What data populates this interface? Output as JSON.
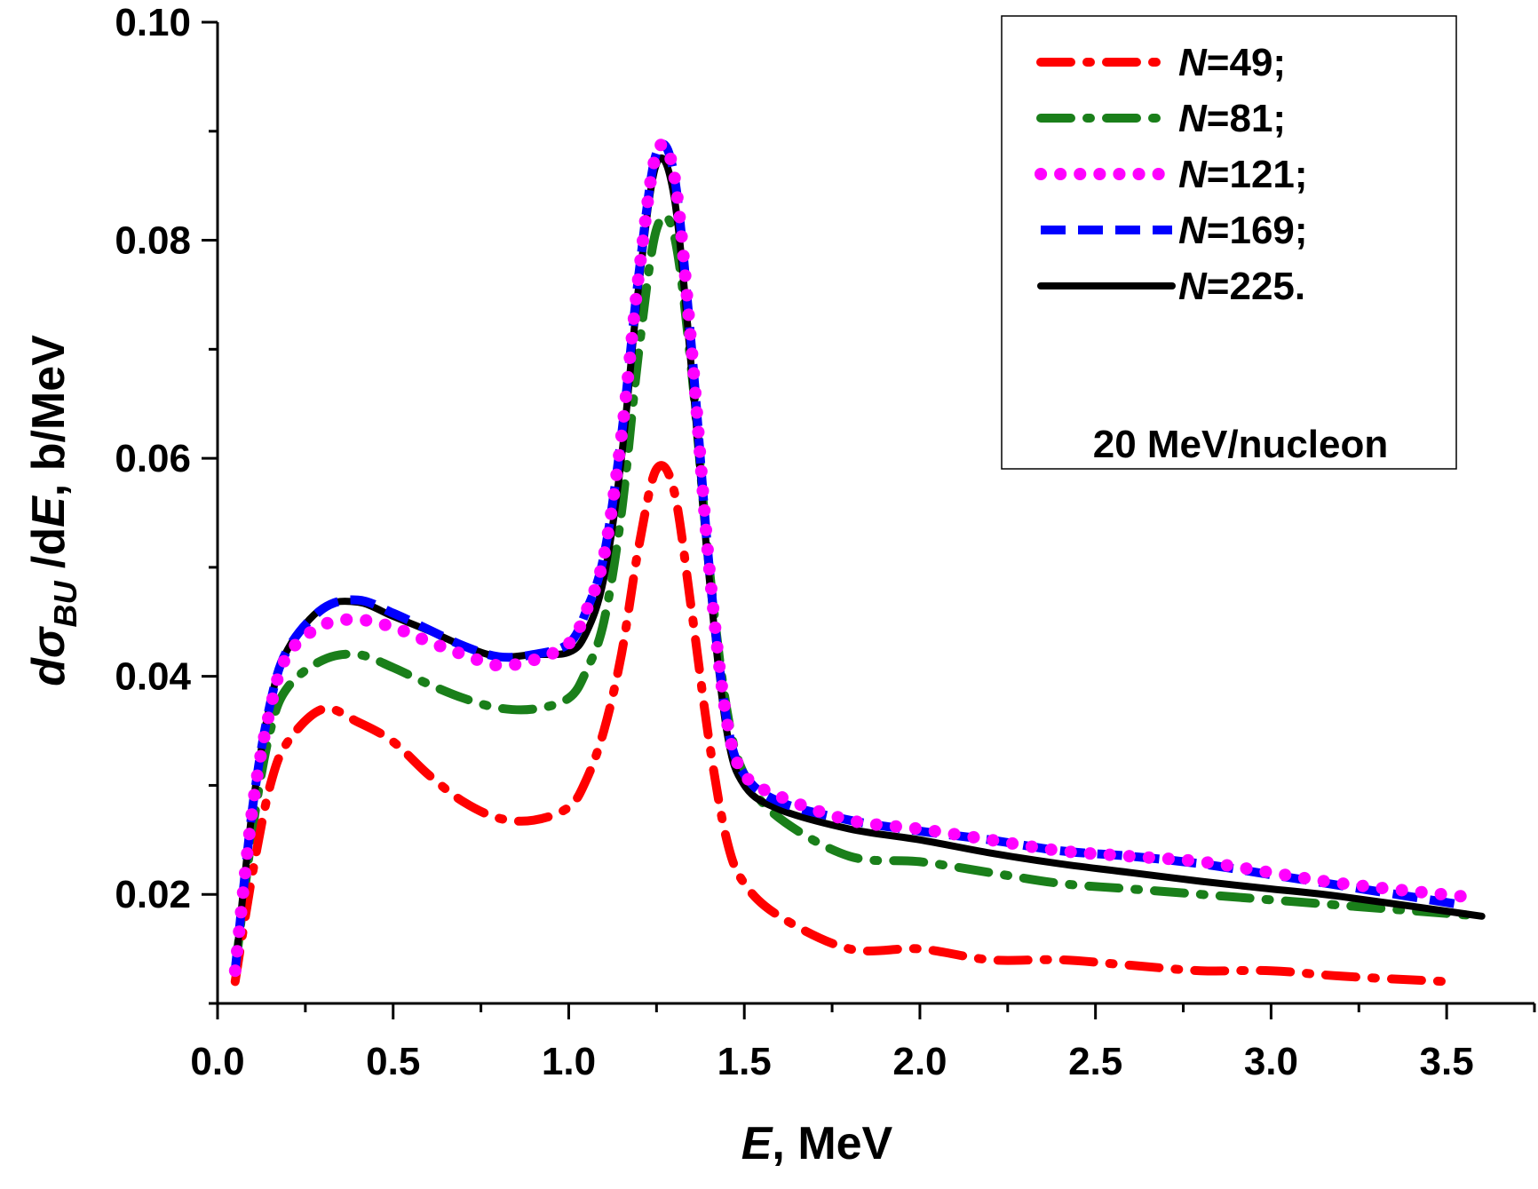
{
  "chart_data": {
    "type": "line",
    "xlabel": {
      "italic": "E",
      "rest": ", MeV"
    },
    "ylabel": {
      "d1": "d",
      "sigma": "σ",
      "sub": "BU",
      "mid": " /d",
      "E": "E",
      "rest": ", b/MeV"
    },
    "xlim": [
      0.0,
      3.75
    ],
    "ylim": [
      0.01,
      0.1
    ],
    "xticks": [
      "0.0",
      "0.5",
      "1.0",
      "1.5",
      "2.0",
      "2.5",
      "3.0",
      "3.5"
    ],
    "yticks": [
      "0.02",
      "0.04",
      "0.06",
      "0.08",
      "0.10"
    ],
    "annotation": "20 MeV/nucleon",
    "series": [
      {
        "name": "49;",
        "prefix": "N",
        "suffix": "=49;",
        "color": "#ff0000",
        "style": "dash-dot",
        "x": [
          0.05,
          0.1,
          0.15,
          0.2,
          0.3,
          0.4,
          0.5,
          0.6,
          0.7,
          0.8,
          0.9,
          1.0,
          1.05,
          1.1,
          1.15,
          1.2,
          1.25,
          1.3,
          1.35,
          1.4,
          1.45,
          1.5,
          1.6,
          1.8,
          2.0,
          2.2,
          2.4,
          2.6,
          2.8,
          3.0,
          3.2,
          3.5
        ],
        "y": [
          0.012,
          0.022,
          0.03,
          0.034,
          0.037,
          0.0358,
          0.034,
          0.031,
          0.0285,
          0.027,
          0.0268,
          0.028,
          0.0305,
          0.035,
          0.042,
          0.052,
          0.059,
          0.057,
          0.046,
          0.034,
          0.025,
          0.021,
          0.018,
          0.015,
          0.015,
          0.014,
          0.014,
          0.0135,
          0.013,
          0.013,
          0.0125,
          0.012
        ]
      },
      {
        "name": "81;",
        "prefix": "N",
        "suffix": "=81;",
        "color": "#1a7f1a",
        "style": "dash-dot",
        "x": [
          0.05,
          0.1,
          0.15,
          0.2,
          0.3,
          0.4,
          0.5,
          0.6,
          0.7,
          0.8,
          0.9,
          1.0,
          1.05,
          1.1,
          1.15,
          1.2,
          1.25,
          1.3,
          1.35,
          1.4,
          1.45,
          1.5,
          1.6,
          1.8,
          2.0,
          2.2,
          2.4,
          2.6,
          2.8,
          3.0,
          3.2,
          3.6
        ],
        "y": [
          0.013,
          0.026,
          0.035,
          0.039,
          0.0415,
          0.042,
          0.0408,
          0.0393,
          0.038,
          0.0371,
          0.037,
          0.038,
          0.0405,
          0.045,
          0.055,
          0.07,
          0.081,
          0.0805,
          0.068,
          0.05,
          0.037,
          0.031,
          0.027,
          0.0235,
          0.023,
          0.022,
          0.021,
          0.0205,
          0.02,
          0.0195,
          0.019,
          0.018
        ]
      },
      {
        "name": "121;",
        "prefix": "N",
        "suffix": "=121;",
        "color": "#ff00ff",
        "style": "dotted",
        "x": [
          0.05,
          0.1,
          0.15,
          0.2,
          0.3,
          0.4,
          0.5,
          0.6,
          0.7,
          0.8,
          0.9,
          1.0,
          1.05,
          1.1,
          1.15,
          1.2,
          1.25,
          1.3,
          1.35,
          1.4,
          1.45,
          1.5,
          1.6,
          1.8,
          2.0,
          2.2,
          2.4,
          2.6,
          2.8,
          3.0,
          3.2,
          3.55
        ],
        "y": [
          0.013,
          0.028,
          0.037,
          0.042,
          0.0447,
          0.0452,
          0.0445,
          0.0432,
          0.042,
          0.041,
          0.0415,
          0.043,
          0.046,
          0.051,
          0.062,
          0.077,
          0.088,
          0.086,
          0.07,
          0.05,
          0.036,
          0.031,
          0.029,
          0.0268,
          0.026,
          0.025,
          0.024,
          0.0235,
          0.023,
          0.022,
          0.021,
          0.0198
        ]
      },
      {
        "name": "169;",
        "prefix": "N",
        "suffix": "=169;",
        "color": "#0000ff",
        "style": "dashed",
        "x": [
          0.05,
          0.1,
          0.15,
          0.2,
          0.3,
          0.4,
          0.5,
          0.6,
          0.7,
          0.8,
          0.9,
          1.0,
          1.05,
          1.1,
          1.15,
          1.2,
          1.25,
          1.3,
          1.35,
          1.4,
          1.45,
          1.5,
          1.6,
          1.8,
          2.0,
          2.2,
          2.4,
          2.6,
          2.8,
          3.0,
          3.2,
          3.55
        ],
        "y": [
          0.013,
          0.028,
          0.0375,
          0.0425,
          0.0462,
          0.047,
          0.0458,
          0.0443,
          0.0428,
          0.0418,
          0.042,
          0.043,
          0.046,
          0.051,
          0.062,
          0.077,
          0.088,
          0.086,
          0.07,
          0.05,
          0.036,
          0.031,
          0.0285,
          0.0268,
          0.0258,
          0.025,
          0.024,
          0.0235,
          0.0228,
          0.0218,
          0.0208,
          0.019
        ]
      },
      {
        "name": "225.",
        "prefix": "N",
        "suffix": "=225.",
        "color": "#000000",
        "style": "solid",
        "x": [
          0.05,
          0.1,
          0.15,
          0.2,
          0.3,
          0.4,
          0.5,
          0.6,
          0.7,
          0.8,
          0.9,
          1.0,
          1.05,
          1.1,
          1.15,
          1.2,
          1.25,
          1.3,
          1.35,
          1.4,
          1.45,
          1.5,
          1.6,
          1.8,
          2.0,
          2.2,
          2.4,
          2.6,
          2.8,
          3.0,
          3.2,
          3.6
        ],
        "y": [
          0.013,
          0.028,
          0.0375,
          0.0425,
          0.0463,
          0.0468,
          0.0455,
          0.0442,
          0.0428,
          0.0418,
          0.042,
          0.0422,
          0.044,
          0.049,
          0.06,
          0.076,
          0.087,
          0.084,
          0.068,
          0.049,
          0.035,
          0.03,
          0.0278,
          0.026,
          0.025,
          0.0238,
          0.0228,
          0.022,
          0.0212,
          0.0205,
          0.0198,
          0.018
        ]
      }
    ]
  }
}
